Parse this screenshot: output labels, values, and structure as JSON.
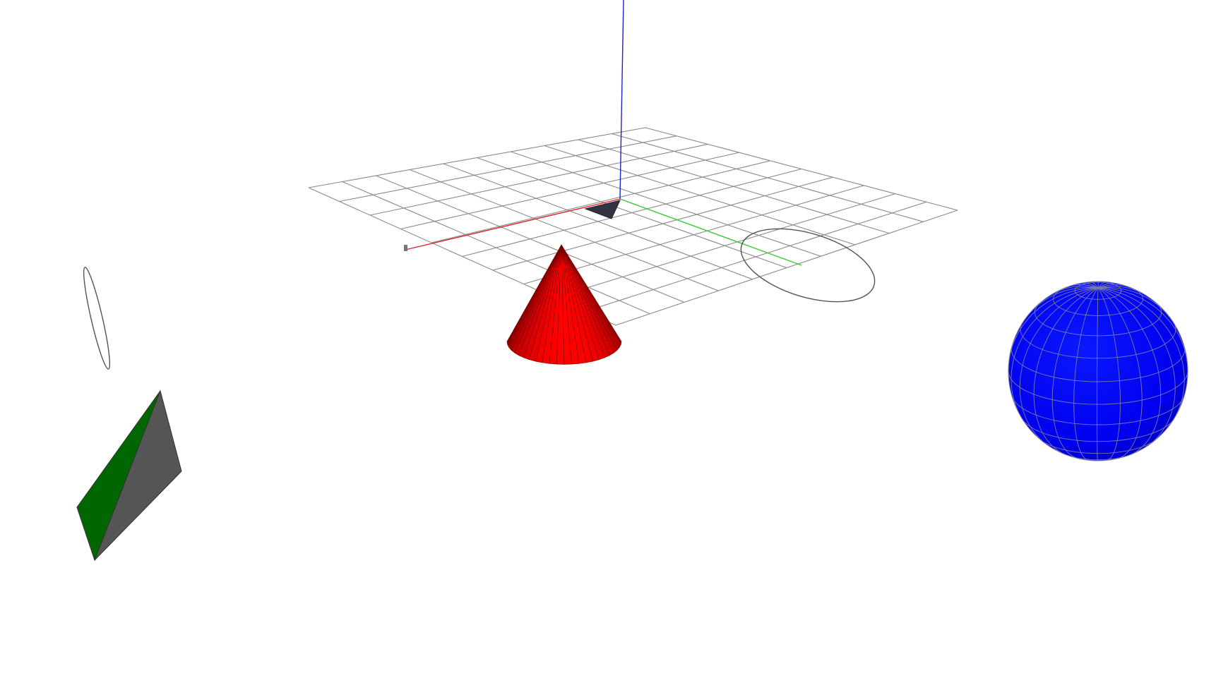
{
  "viewport": {
    "background": "#ffffff",
    "grid_color": "#8a8a8a",
    "grid_divisions": 10
  },
  "axes": {
    "x_color": "#e0202a",
    "y_color": "#33cc33",
    "z_color": "#2222cc"
  },
  "objects": {
    "cone": {
      "color": "#ff0000",
      "shade": "#a00000",
      "segments": 24,
      "edge_color": "#7a0000"
    },
    "sphere": {
      "color": "#0000ee",
      "edge_color": "#7a7aaa",
      "lat_bands": 12,
      "lon_bands": 24
    },
    "tetrahedron": {
      "face_a_color": "#006600",
      "face_b_color": "#555555",
      "edge_color": "#333333"
    },
    "rings": {
      "stroke": "#555555",
      "count": 2
    },
    "origin_marker": {
      "color": "#333344"
    }
  }
}
